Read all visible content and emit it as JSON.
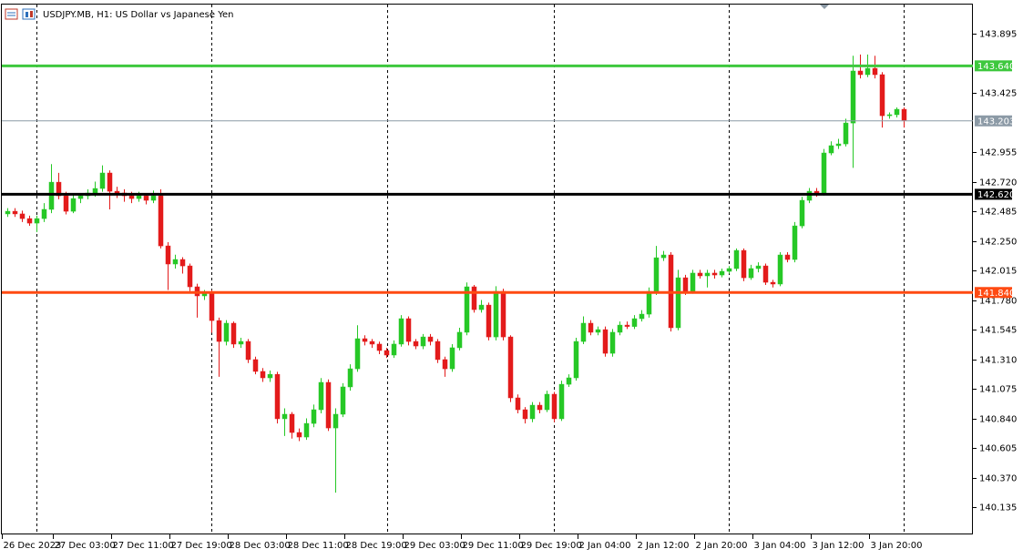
{
  "chart_data": {
    "type": "candlestick",
    "title": "USDJPY.MB, H1:  US Dollar vs Japanese Yen",
    "up_color": "#26c826",
    "down_color": "#e31b1b",
    "ylim": [
      139.933,
      144.134
    ],
    "yticks": [
      143.895,
      143.425,
      142.955,
      {
        "value": 142.72,
        "label": "142.720"
      },
      142.485,
      {
        "value": 142.25,
        "label": "142.250"
      },
      142.015,
      {
        "value": 141.78,
        "label": "141.780"
      },
      141.545,
      {
        "value": 141.31,
        "label": "141.310"
      },
      141.075,
      {
        "value": 140.84,
        "label": "140.840"
      },
      140.605,
      {
        "value": 140.37,
        "label": "140.370"
      },
      140.135
    ],
    "levels": [
      {
        "value": 143.64,
        "label": "143.640",
        "color": "#3ec83e",
        "width": 3
      },
      {
        "value": 143.203,
        "label": "143.203",
        "color": "#8c9aa6",
        "width": 1
      },
      {
        "value": 142.62,
        "label": "142.620",
        "color": "#000000",
        "width": 3
      },
      {
        "value": 141.84,
        "label": "141.840",
        "color": "#ff4a12",
        "width": 3
      }
    ],
    "categories": [
      "26 Dec 2023",
      null,
      null,
      null,
      null,
      null,
      null,
      "27 Dec 03:00",
      null,
      null,
      null,
      null,
      null,
      null,
      null,
      "27 Dec 11:00",
      null,
      null,
      null,
      null,
      null,
      null,
      null,
      "27 Dec 19:00",
      null,
      null,
      null,
      null,
      null,
      null,
      null,
      "28 Dec 03:00",
      null,
      null,
      null,
      null,
      null,
      null,
      null,
      "28 Dec 11:00",
      null,
      null,
      null,
      null,
      null,
      null,
      null,
      "28 Dec 19:00",
      null,
      null,
      null,
      null,
      null,
      null,
      null,
      "29 Dec 03:00",
      null,
      null,
      null,
      null,
      null,
      null,
      null,
      "29 Dec 11:00",
      null,
      null,
      null,
      null,
      null,
      null,
      null,
      "29 Dec 19:00",
      null,
      null,
      null,
      null,
      null,
      null,
      null,
      "2 Jan 04:00",
      null,
      null,
      null,
      null,
      null,
      null,
      null,
      "2 Jan 12:00",
      null,
      null,
      null,
      null,
      null,
      null,
      null,
      "2 Jan 20:00",
      null,
      null,
      null,
      null,
      null,
      null,
      null,
      "3 Jan 04:00",
      null,
      null,
      null,
      null,
      null,
      null,
      null,
      "3 Jan 12:00",
      null,
      null,
      null,
      null,
      null,
      null,
      null,
      "3 Jan 20:00",
      null,
      null,
      null,
      null
    ],
    "open": [
      142.464,
      142.485,
      142.464,
      142.427,
      142.391,
      142.427,
      142.5,
      142.716,
      142.608,
      142.485,
      142.586,
      142.608,
      142.63,
      142.666,
      142.789,
      142.644,
      142.63,
      142.608,
      142.586,
      142.608,
      142.572,
      142.608,
      142.21,
      142.066,
      142.102,
      142.051,
      141.885,
      141.813,
      141.834,
      141.617,
      141.451,
      141.596,
      141.43,
      141.451,
      141.307,
      141.213,
      141.162,
      141.19,
      140.837,
      140.873,
      140.728,
      140.692,
      140.8,
      140.909,
      141.126,
      140.764,
      140.873,
      141.09,
      141.234,
      141.473,
      141.451,
      141.43,
      141.379,
      141.343,
      141.43,
      141.632,
      141.451,
      141.415,
      141.487,
      141.451,
      141.307,
      141.234,
      141.401,
      141.524,
      141.885,
      141.704,
      141.74,
      141.487,
      141.849,
      141.487,
      141.003,
      140.909,
      140.837,
      140.945,
      140.909,
      141.032,
      140.837,
      141.111,
      141.162,
      141.451,
      141.596,
      141.524,
      141.545,
      141.357,
      141.524,
      141.581,
      141.57,
      141.632,
      141.668,
      141.849,
      142.116,
      142.138,
      141.56,
      141.957,
      141.849,
      141.994,
      141.972,
      141.994,
      141.979,
      142.008,
      142.03,
      142.174,
      141.957,
      142.03,
      142.051,
      141.921,
      141.907,
      142.138,
      142.102,
      142.369,
      142.572,
      142.644,
      142.63,
      142.948,
      143.006,
      143.02,
      143.186,
      143.599,
      143.57,
      143.62,
      143.57,
      143.244,
      143.252,
      143.295
    ],
    "high": [
      142.51,
      142.51,
      142.49,
      142.45,
      142.45,
      142.55,
      142.86,
      142.79,
      142.64,
      142.62,
      142.63,
      142.66,
      142.72,
      142.85,
      142.81,
      142.68,
      142.66,
      142.64,
      142.64,
      142.63,
      142.65,
      142.66,
      142.24,
      142.14,
      142.12,
      142.07,
      141.91,
      141.86,
      141.86,
      141.64,
      141.62,
      141.61,
      141.48,
      141.47,
      141.33,
      141.24,
      141.22,
      141.21,
      140.92,
      140.89,
      140.76,
      140.84,
      140.95,
      141.16,
      141.15,
      140.92,
      141.12,
      141.27,
      141.58,
      141.5,
      141.47,
      141.45,
      141.4,
      141.46,
      141.66,
      141.65,
      141.47,
      141.51,
      141.51,
      141.47,
      141.33,
      141.43,
      141.56,
      141.92,
      141.9,
      141.78,
      141.76,
      141.89,
      141.87,
      141.5,
      141.03,
      140.93,
      140.97,
      140.97,
      141.06,
      141.05,
      141.14,
      141.19,
      141.48,
      141.65,
      141.62,
      141.57,
      141.57,
      141.55,
      141.61,
      141.61,
      141.66,
      141.7,
      141.88,
      142.21,
      142.17,
      142.16,
      142.02,
      141.98,
      142.02,
      142.02,
      142.02,
      142.02,
      142.03,
      142.05,
      142.19,
      142.19,
      142.06,
      142.08,
      142.07,
      141.94,
      142.16,
      142.16,
      142.4,
      142.6,
      142.67,
      142.67,
      142.98,
      143.04,
      143.06,
      143.22,
      143.72,
      143.73,
      143.73,
      143.72,
      143.59,
      143.27,
      143.31,
      143.31
    ],
    "low": [
      142.44,
      142.44,
      142.4,
      142.37,
      142.32,
      142.4,
      142.47,
      142.58,
      142.46,
      142.47,
      142.55,
      142.58,
      142.6,
      142.64,
      142.5,
      142.59,
      142.56,
      142.55,
      142.56,
      142.54,
      142.55,
      142.19,
      141.86,
      142.03,
      141.99,
      141.85,
      141.64,
      141.78,
      141.52,
      141.17,
      141.42,
      141.4,
      141.4,
      141.28,
      141.19,
      141.13,
      141.13,
      140.8,
      140.7,
      140.68,
      140.66,
      140.67,
      140.77,
      140.88,
      140.74,
      140.25,
      140.85,
      141.06,
      141.21,
      141.42,
      141.4,
      141.35,
      141.32,
      141.32,
      141.41,
      141.42,
      141.39,
      141.39,
      141.42,
      141.28,
      141.17,
      141.21,
      141.38,
      141.5,
      141.68,
      141.68,
      141.46,
      141.46,
      141.46,
      140.97,
      140.88,
      140.8,
      140.81,
      140.88,
      140.89,
      140.81,
      140.82,
      141.09,
      141.14,
      141.43,
      141.5,
      141.5,
      141.33,
      141.33,
      141.5,
      141.55,
      141.55,
      141.61,
      141.64,
      141.82,
      142.09,
      141.53,
      141.54,
      141.82,
      141.83,
      141.95,
      141.88,
      141.95,
      141.96,
      141.99,
      142.01,
      141.93,
      141.94,
      142.0,
      141.9,
      141.88,
      141.89,
      142.08,
      142.08,
      142.35,
      142.55,
      142.6,
      142.61,
      142.93,
      142.98,
      143.0,
      142.83,
      143.54,
      143.55,
      143.54,
      143.15,
      143.22,
      143.23,
      143.15
    ],
    "close": [
      142.485,
      142.464,
      142.427,
      142.391,
      142.427,
      142.5,
      142.716,
      142.608,
      142.485,
      142.586,
      142.608,
      142.63,
      142.666,
      142.789,
      142.644,
      142.63,
      142.608,
      142.586,
      142.608,
      142.572,
      142.608,
      142.21,
      142.066,
      142.102,
      142.051,
      141.885,
      141.813,
      141.834,
      141.617,
      141.451,
      141.596,
      141.43,
      141.451,
      141.307,
      141.213,
      141.162,
      141.19,
      140.837,
      140.873,
      140.728,
      140.692,
      140.8,
      140.909,
      141.126,
      140.764,
      140.873,
      141.09,
      141.234,
      141.473,
      141.451,
      141.43,
      141.379,
      141.343,
      141.43,
      141.632,
      141.451,
      141.415,
      141.487,
      141.451,
      141.307,
      141.234,
      141.401,
      141.524,
      141.885,
      141.704,
      141.74,
      141.487,
      141.849,
      141.487,
      141.003,
      140.909,
      140.837,
      140.945,
      140.909,
      141.032,
      140.837,
      141.111,
      141.162,
      141.451,
      141.596,
      141.524,
      141.545,
      141.357,
      141.524,
      141.581,
      141.57,
      141.632,
      141.668,
      141.849,
      142.116,
      142.138,
      141.56,
      141.957,
      141.849,
      141.994,
      141.972,
      141.994,
      141.979,
      142.008,
      142.03,
      142.174,
      141.957,
      142.03,
      142.051,
      141.921,
      141.907,
      142.138,
      142.102,
      142.369,
      142.572,
      142.644,
      142.63,
      142.948,
      143.006,
      143.02,
      143.186,
      143.599,
      143.57,
      143.62,
      143.57,
      143.244,
      143.252,
      143.295,
      143.208
    ]
  }
}
